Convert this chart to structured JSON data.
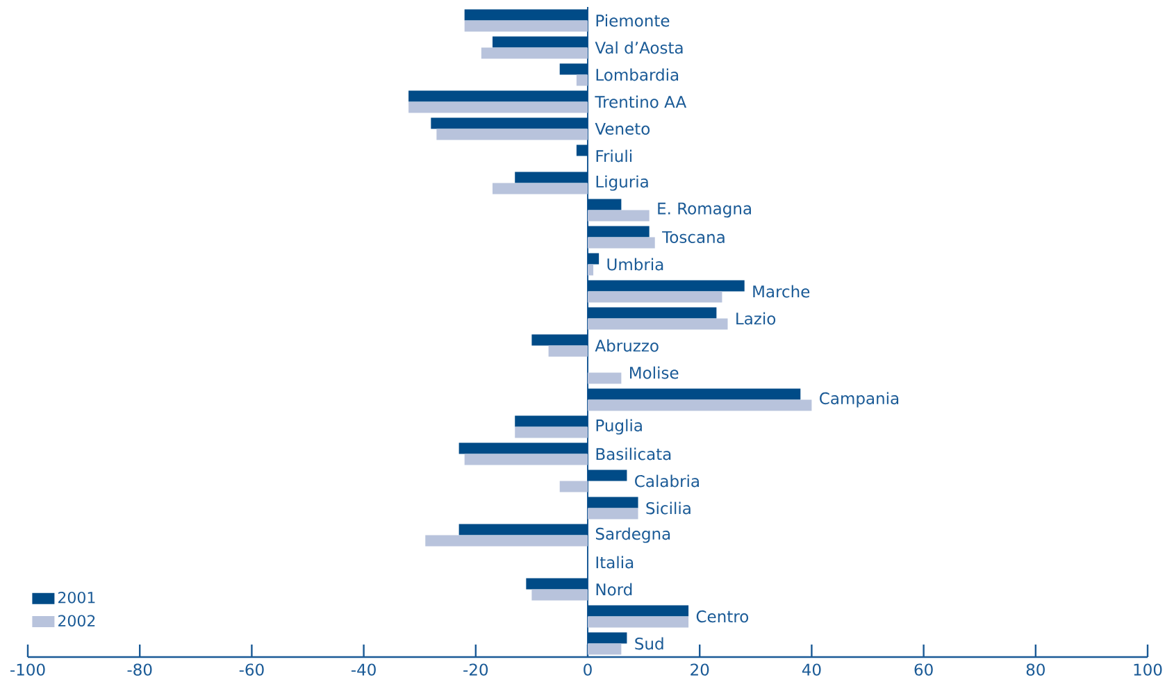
{
  "chart_data": {
    "type": "bar",
    "orientation": "horizontal",
    "categories": [
      "Piemonte",
      "Val d’Aosta",
      "Lombardia",
      "Trentino AA",
      "Veneto",
      "Friuli",
      "Liguria",
      "E. Romagna",
      "Toscana",
      "Umbria",
      "Marche",
      "Lazio",
      "Abruzzo",
      "Molise",
      "Campania",
      "Puglia",
      "Basilicata",
      "Calabria",
      "Sicilia",
      "Sardegna",
      "Italia",
      "Nord",
      "Centro",
      "Sud"
    ],
    "series": [
      {
        "name": "2001",
        "color": "#004b87",
        "values": [
          -22,
          -17,
          -5,
          -32,
          -28,
          -2,
          -13,
          6,
          11,
          2,
          28,
          23,
          -10,
          0,
          38,
          -13,
          -23,
          7,
          9,
          -23,
          0,
          -11,
          18,
          7
        ]
      },
      {
        "name": "2002",
        "color": "#b8c3dc",
        "values": [
          -22,
          -19,
          -2,
          -32,
          -27,
          0,
          -17,
          11,
          12,
          1,
          24,
          25,
          -7,
          6,
          40,
          -13,
          -22,
          -5,
          9,
          -29,
          0,
          -10,
          18,
          6
        ]
      }
    ],
    "xlim": [
      -100,
      100
    ],
    "xticks": [
      -100,
      -80,
      -60,
      -40,
      -20,
      0,
      20,
      40,
      60,
      80,
      100
    ],
    "grid": false,
    "legend": "bottom left"
  }
}
